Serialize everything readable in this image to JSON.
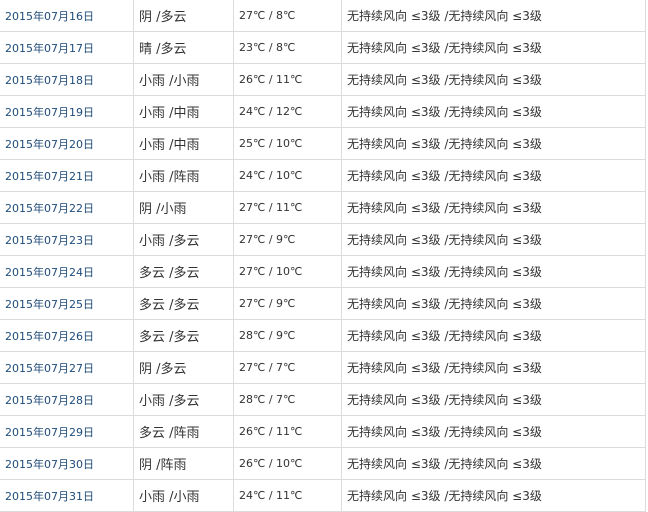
{
  "rows": [
    {
      "date": "2015年07月16日",
      "weather": "阴 /多云",
      "temp": "27℃ / 8℃",
      "wind": "无持续风向 ≤3级 /无持续风向 ≤3级"
    },
    {
      "date": "2015年07月17日",
      "weather": "晴 /多云",
      "temp": "23℃ / 8℃",
      "wind": "无持续风向 ≤3级 /无持续风向 ≤3级"
    },
    {
      "date": "2015年07月18日",
      "weather": "小雨 /小雨",
      "temp": "26℃ / 11℃",
      "wind": "无持续风向 ≤3级 /无持续风向 ≤3级"
    },
    {
      "date": "2015年07月19日",
      "weather": "小雨 /中雨",
      "temp": "24℃ / 12℃",
      "wind": "无持续风向 ≤3级 /无持续风向 ≤3级"
    },
    {
      "date": "2015年07月20日",
      "weather": "小雨 /中雨",
      "temp": "25℃ / 10℃",
      "wind": "无持续风向 ≤3级 /无持续风向 ≤3级"
    },
    {
      "date": "2015年07月21日",
      "weather": "小雨 /阵雨",
      "temp": "24℃ / 10℃",
      "wind": "无持续风向 ≤3级 /无持续风向 ≤3级"
    },
    {
      "date": "2015年07月22日",
      "weather": "阴 /小雨",
      "temp": "27℃ / 11℃",
      "wind": "无持续风向 ≤3级 /无持续风向 ≤3级"
    },
    {
      "date": "2015年07月23日",
      "weather": "小雨 /多云",
      "temp": "27℃ / 9℃",
      "wind": "无持续风向 ≤3级 /无持续风向 ≤3级"
    },
    {
      "date": "2015年07月24日",
      "weather": "多云 /多云",
      "temp": "27℃ / 10℃",
      "wind": "无持续风向 ≤3级 /无持续风向 ≤3级"
    },
    {
      "date": "2015年07月25日",
      "weather": "多云 /多云",
      "temp": "27℃ / 9℃",
      "wind": "无持续风向 ≤3级 /无持续风向 ≤3级"
    },
    {
      "date": "2015年07月26日",
      "weather": "多云 /多云",
      "temp": "28℃ / 9℃",
      "wind": "无持续风向 ≤3级 /无持续风向 ≤3级"
    },
    {
      "date": "2015年07月27日",
      "weather": "阴 /多云",
      "temp": "27℃ / 7℃",
      "wind": "无持续风向 ≤3级 /无持续风向 ≤3级"
    },
    {
      "date": "2015年07月28日",
      "weather": "小雨 /多云",
      "temp": "28℃ / 7℃",
      "wind": "无持续风向 ≤3级 /无持续风向 ≤3级"
    },
    {
      "date": "2015年07月29日",
      "weather": "多云 /阵雨",
      "temp": "26℃ / 11℃",
      "wind": "无持续风向 ≤3级 /无持续风向 ≤3级"
    },
    {
      "date": "2015年07月30日",
      "weather": "阴 /阵雨",
      "temp": "26℃ / 10℃",
      "wind": "无持续风向 ≤3级 /无持续风向 ≤3级"
    },
    {
      "date": "2015年07月31日",
      "weather": "小雨 /小雨",
      "temp": "24℃ / 11℃",
      "wind": "无持续风向 ≤3级 /无持续风向 ≤3级"
    }
  ]
}
